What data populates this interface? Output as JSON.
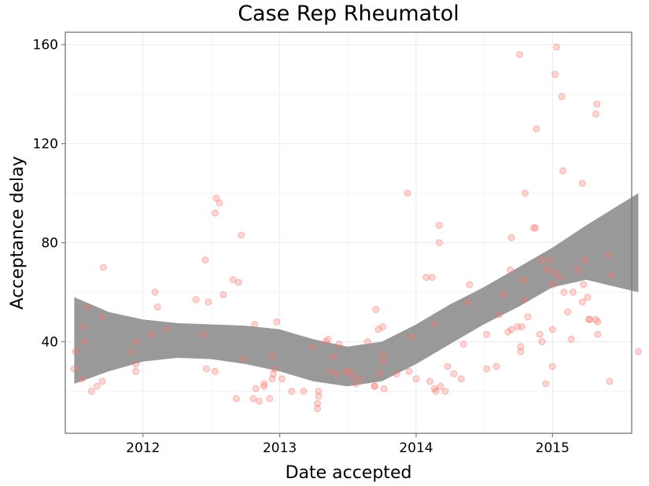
{
  "chart_data": {
    "type": "scatter",
    "title": "Case Rep Rheumatol",
    "xlabel": "Date accepted",
    "ylabel": "Acceptance delay",
    "x_is_date": true,
    "xlim": [
      "2011-06-07",
      "2015-08-01"
    ],
    "ylim": [
      3,
      165
    ],
    "x_ticks": [
      {
        "value": "2012-01-01",
        "label": "2012"
      },
      {
        "value": "2013-01-01",
        "label": "2013"
      },
      {
        "value": "2014-01-01",
        "label": "2014"
      },
      {
        "value": "2015-01-01",
        "label": "2015"
      }
    ],
    "y_ticks": [
      {
        "value": 40,
        "label": "40"
      },
      {
        "value": 80,
        "label": "80"
      },
      {
        "value": 120,
        "label": "120"
      },
      {
        "value": 160,
        "label": "160"
      }
    ],
    "grid": true,
    "point_color": "#f8766d",
    "smooth_band_color": "#999999",
    "series": [
      {
        "points": [
          [
            "2011-07-01",
            29
          ],
          [
            "2011-07-04",
            36
          ],
          [
            "2011-07-22",
            25
          ],
          [
            "2011-07-28",
            46
          ],
          [
            "2011-07-28",
            40
          ],
          [
            "2011-08-05",
            54
          ],
          [
            "2011-08-16",
            20
          ],
          [
            "2011-08-31",
            22
          ],
          [
            "2011-09-14",
            24
          ],
          [
            "2011-09-14",
            50
          ],
          [
            "2011-09-17",
            70
          ],
          [
            "2011-12-01",
            36
          ],
          [
            "2011-12-13",
            40
          ],
          [
            "2011-12-13",
            31
          ],
          [
            "2011-12-13",
            28
          ],
          [
            "2012-01-22",
            43
          ],
          [
            "2012-02-02",
            60
          ],
          [
            "2012-02-09",
            54
          ],
          [
            "2012-03-04",
            45
          ],
          [
            "2012-05-22",
            57
          ],
          [
            "2012-06-11",
            43
          ],
          [
            "2012-06-16",
            73
          ],
          [
            "2012-06-19",
            29
          ],
          [
            "2012-06-24",
            56
          ],
          [
            "2012-07-12",
            28
          ],
          [
            "2012-07-12",
            92
          ],
          [
            "2012-07-15",
            98
          ],
          [
            "2012-07-24",
            96
          ],
          [
            "2012-08-03",
            59
          ],
          [
            "2012-08-29",
            65
          ],
          [
            "2012-09-07",
            17
          ],
          [
            "2012-09-13",
            64
          ],
          [
            "2012-09-20",
            83
          ],
          [
            "2012-09-26",
            33
          ],
          [
            "2012-10-22",
            17
          ],
          [
            "2012-10-26",
            47
          ],
          [
            "2012-10-29",
            21
          ],
          [
            "2012-11-07",
            16
          ],
          [
            "2012-11-20",
            23
          ],
          [
            "2012-11-20",
            22
          ],
          [
            "2012-12-05",
            17
          ],
          [
            "2012-12-12",
            34
          ],
          [
            "2012-12-12",
            25
          ],
          [
            "2012-12-15",
            27
          ],
          [
            "2012-12-18",
            29
          ],
          [
            "2012-12-24",
            48
          ],
          [
            "2013-01-07",
            25
          ],
          [
            "2013-02-02",
            20
          ],
          [
            "2013-03-06",
            20
          ],
          [
            "2013-03-30",
            38
          ],
          [
            "2013-04-12",
            15
          ],
          [
            "2013-04-12",
            13
          ],
          [
            "2013-04-15",
            18
          ],
          [
            "2013-04-15",
            20
          ],
          [
            "2013-05-04",
            40
          ],
          [
            "2013-05-10",
            41
          ],
          [
            "2013-05-16",
            28
          ],
          [
            "2013-05-25",
            34
          ],
          [
            "2013-06-03",
            27
          ],
          [
            "2013-06-09",
            39
          ],
          [
            "2013-06-28",
            28
          ],
          [
            "2013-07-05",
            28
          ],
          [
            "2013-07-15",
            26
          ],
          [
            "2013-07-24",
            23
          ],
          [
            "2013-08-05",
            25
          ],
          [
            "2013-08-24",
            40
          ],
          [
            "2013-09-12",
            22
          ],
          [
            "2013-09-12",
            22
          ],
          [
            "2013-09-15",
            53
          ],
          [
            "2013-09-22",
            45
          ],
          [
            "2013-09-25",
            27
          ],
          [
            "2013-10-04",
            46
          ],
          [
            "2013-10-04",
            35
          ],
          [
            "2013-10-04",
            32
          ],
          [
            "2013-10-07",
            21
          ],
          [
            "2013-11-10",
            27
          ],
          [
            "2013-12-09",
            100
          ],
          [
            "2013-12-13",
            28
          ],
          [
            "2013-12-19",
            42
          ],
          [
            "2014-01-01",
            25
          ],
          [
            "2014-01-28",
            66
          ],
          [
            "2014-02-07",
            24
          ],
          [
            "2014-02-13",
            66
          ],
          [
            "2014-02-19",
            21
          ],
          [
            "2014-02-19",
            47
          ],
          [
            "2014-02-23",
            20
          ],
          [
            "2014-03-04",
            80
          ],
          [
            "2014-03-04",
            87
          ],
          [
            "2014-03-07",
            22
          ],
          [
            "2014-03-20",
            20
          ],
          [
            "2014-03-26",
            30
          ],
          [
            "2014-04-12",
            27
          ],
          [
            "2014-05-02",
            25
          ],
          [
            "2014-05-08",
            39
          ],
          [
            "2014-05-20",
            56
          ],
          [
            "2014-05-24",
            63
          ],
          [
            "2014-07-09",
            43
          ],
          [
            "2014-07-09",
            29
          ],
          [
            "2014-08-04",
            30
          ],
          [
            "2014-08-11",
            51
          ],
          [
            "2014-08-22",
            59
          ],
          [
            "2014-09-04",
            44
          ],
          [
            "2014-09-10",
            69
          ],
          [
            "2014-09-13",
            82
          ],
          [
            "2014-09-13",
            45
          ],
          [
            "2014-09-29",
            46
          ],
          [
            "2014-10-05",
            156
          ],
          [
            "2014-10-08",
            36
          ],
          [
            "2014-10-08",
            38
          ],
          [
            "2014-10-11",
            46
          ],
          [
            "2014-10-17",
            57
          ],
          [
            "2014-10-17",
            65
          ],
          [
            "2014-10-20",
            100
          ],
          [
            "2014-10-27",
            50
          ],
          [
            "2014-11-12",
            86
          ],
          [
            "2014-11-16",
            86
          ],
          [
            "2014-11-19",
            126
          ],
          [
            "2014-11-28",
            43
          ],
          [
            "2014-12-04",
            40
          ],
          [
            "2014-12-04",
            73
          ],
          [
            "2014-12-14",
            23
          ],
          [
            "2014-12-17",
            69
          ],
          [
            "2014-12-26",
            73
          ],
          [
            "2015-01-01",
            45
          ],
          [
            "2015-01-01",
            30
          ],
          [
            "2015-01-02",
            63
          ],
          [
            "2015-01-08",
            68
          ],
          [
            "2015-01-08",
            148
          ],
          [
            "2015-01-12",
            159
          ],
          [
            "2015-01-20",
            66
          ],
          [
            "2015-01-26",
            139
          ],
          [
            "2015-01-29",
            109
          ],
          [
            "2015-02-01",
            60
          ],
          [
            "2015-02-11",
            52
          ],
          [
            "2015-02-20",
            41
          ],
          [
            "2015-02-25",
            60
          ],
          [
            "2015-03-09",
            69
          ],
          [
            "2015-03-22",
            104
          ],
          [
            "2015-03-22",
            56
          ],
          [
            "2015-03-25",
            63
          ],
          [
            "2015-03-29",
            73
          ],
          [
            "2015-04-05",
            58
          ],
          [
            "2015-04-08",
            49
          ],
          [
            "2015-04-11",
            49
          ],
          [
            "2015-04-27",
            49
          ],
          [
            "2015-04-27",
            132
          ],
          [
            "2015-04-30",
            136
          ],
          [
            "2015-05-02",
            43
          ],
          [
            "2015-05-02",
            48
          ],
          [
            "2015-05-31",
            75
          ],
          [
            "2015-06-03",
            24
          ],
          [
            "2015-06-09",
            67
          ],
          [
            "2015-08-19",
            36
          ]
        ]
      }
    ],
    "smooth": {
      "x": [
        "2011-07-01",
        "2011-10-01",
        "2012-01-01",
        "2012-04-01",
        "2012-07-01",
        "2012-10-01",
        "2013-01-01",
        "2013-04-01",
        "2013-07-01",
        "2013-10-01",
        "2014-01-01",
        "2014-04-01",
        "2014-07-01",
        "2014-10-01",
        "2015-01-01",
        "2015-04-01",
        "2015-08-19"
      ],
      "lower": [
        23,
        28,
        32,
        33.5,
        33,
        31,
        28,
        24,
        22,
        24,
        31,
        39,
        47,
        54,
        62,
        65,
        60
      ],
      "upper": [
        58,
        52,
        49,
        47.5,
        47,
        46.5,
        45,
        41,
        38,
        40,
        47,
        55,
        62,
        70,
        78,
        87,
        100
      ]
    }
  }
}
